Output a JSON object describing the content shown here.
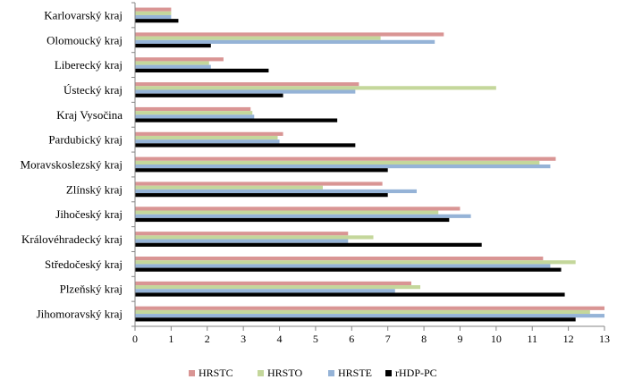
{
  "chart_data": {
    "type": "bar",
    "orientation": "horizontal",
    "title": "",
    "xlabel": "",
    "ylabel": "",
    "xlim": [
      0,
      13
    ],
    "x_ticks": [
      "0",
      "1",
      "2",
      "3",
      "4",
      "5",
      "6",
      "7",
      "8",
      "9",
      "10",
      "11",
      "12",
      "13"
    ],
    "grid": false,
    "legend_position": "bottom",
    "categories": [
      "Karlovarský kraj",
      "Olomoucký kraj",
      "Liberecký kraj",
      "Ústecký kraj",
      "Kraj Vysočina",
      "Pardubický kraj",
      "Moravskoslezský kraj",
      "Zlínský kraj",
      "Jihočeský kraj",
      "Královéhradecký kraj",
      "Středočeský kraj",
      "Plzeňský kraj",
      "Jihomoravský kraj"
    ],
    "series": [
      {
        "name": "HRSTC",
        "color": "#d99594",
        "values": [
          1.0,
          8.55,
          2.45,
          6.2,
          3.2,
          4.1,
          11.65,
          6.85,
          9.0,
          5.9,
          11.3,
          7.65,
          13.0
        ]
      },
      {
        "name": "HRSTO",
        "color": "#c4d79b",
        "values": [
          1.0,
          6.8,
          2.05,
          10.0,
          3.25,
          3.95,
          11.2,
          5.2,
          8.4,
          6.6,
          12.2,
          7.9,
          12.6
        ]
      },
      {
        "name": "HRSTE",
        "color": "#95b3d7",
        "values": [
          1.0,
          8.3,
          2.1,
          6.1,
          3.3,
          4.0,
          11.5,
          7.8,
          9.3,
          5.9,
          11.5,
          7.2,
          13.0
        ]
      },
      {
        "name": "rHDP-PC",
        "color": "#000000",
        "values": [
          1.2,
          2.1,
          3.7,
          4.1,
          5.6,
          6.1,
          7.0,
          7.0,
          8.7,
          9.6,
          11.8,
          11.9,
          12.2
        ]
      }
    ]
  }
}
